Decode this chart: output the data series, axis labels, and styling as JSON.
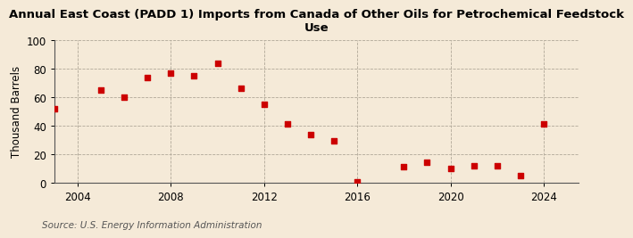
{
  "title": "Annual East Coast (PADD 1) Imports from Canada of Other Oils for Petrochemical Feedstock\nUse",
  "ylabel": "Thousand Barrels",
  "source": "Source: U.S. Energy Information Administration",
  "background_color": "#f5ead8",
  "marker_color": "#cc0000",
  "years": [
    2003,
    2005,
    2006,
    2007,
    2008,
    2009,
    2010,
    2011,
    2012,
    2013,
    2014,
    2015,
    2016,
    2018,
    2019,
    2020,
    2021,
    2022,
    2023,
    2024
  ],
  "values": [
    52,
    65,
    60,
    74,
    77,
    75,
    84,
    66,
    55,
    41,
    34,
    29,
    0.5,
    11,
    14,
    10,
    12,
    12,
    5,
    41
  ],
  "xlim": [
    2003,
    2025.5
  ],
  "ylim": [
    0,
    100
  ],
  "xticks": [
    2004,
    2008,
    2012,
    2016,
    2020,
    2024
  ],
  "yticks": [
    0,
    20,
    40,
    60,
    80,
    100
  ],
  "grid_color": "#b0a898",
  "title_fontsize": 9.5,
  "axis_fontsize": 8.5,
  "source_fontsize": 7.5
}
